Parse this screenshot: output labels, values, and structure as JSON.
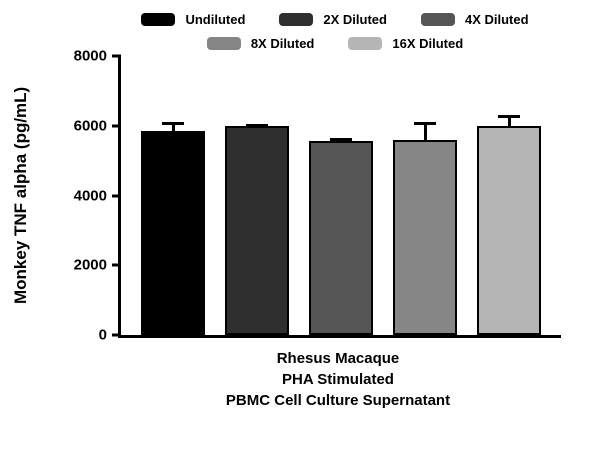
{
  "chart_data": {
    "type": "bar",
    "title": "",
    "ylabel": "Monkey TNF alpha (pg/mL)",
    "xlabel": "",
    "ylim": [
      0,
      8000
    ],
    "yticks": [
      0,
      2000,
      4000,
      6000,
      8000
    ],
    "categories": [
      "Undiluted",
      "2X Diluted",
      "4X Diluted",
      "8X Diluted",
      "16X Diluted"
    ],
    "values": [
      5850,
      6000,
      5570,
      5600,
      6000
    ],
    "errors": [
      250,
      60,
      90,
      500,
      320
    ],
    "colors": [
      "#000000",
      "#2f2f2f",
      "#555555",
      "#868686",
      "#b5b5b5"
    ],
    "legend_rows": [
      [
        0,
        1,
        2
      ],
      [
        3,
        4
      ]
    ],
    "legend_position": "top",
    "grid": false,
    "xcaption": [
      "Rhesus Macaque",
      "PHA Stimulated",
      "PBMC Cell Culture Supernatant"
    ]
  }
}
